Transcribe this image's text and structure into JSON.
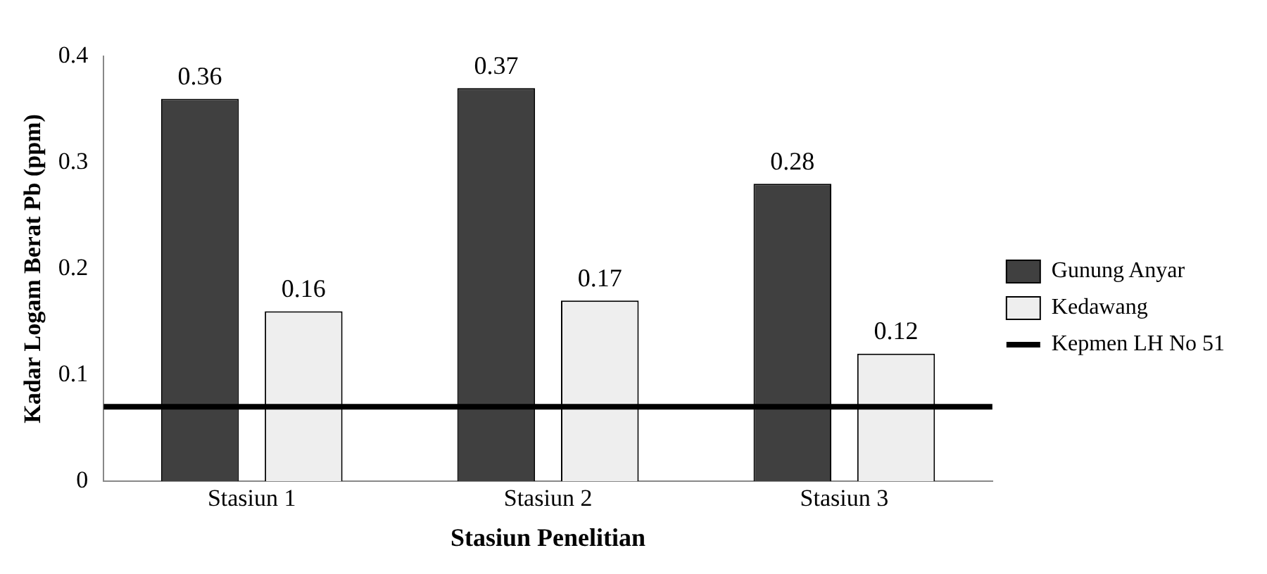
{
  "chart_data": {
    "type": "bar",
    "categories": [
      "Stasiun 1",
      "Stasiun 2",
      "Stasiun 3"
    ],
    "series": [
      {
        "name": "Gunung Anyar",
        "color": "#404040",
        "values": [
          0.36,
          0.37,
          0.28
        ]
      },
      {
        "name": "Kedawang",
        "color": "#eeeeee",
        "values": [
          0.16,
          0.17,
          0.12
        ]
      }
    ],
    "xlabel": "Stasiun Penelitian",
    "ylabel": "Kadar Logam Berat Pb (ppm)",
    "ylim": [
      0,
      0.4
    ],
    "yticks": [
      0,
      0.1,
      0.2,
      0.3,
      0.4
    ],
    "ref_lines": [
      {
        "axis": "y",
        "value": 0.07,
        "label": "Kepmen LH No 51",
        "color": "#000000"
      }
    ],
    "data_labels": true,
    "grid": false,
    "legend": "right"
  }
}
